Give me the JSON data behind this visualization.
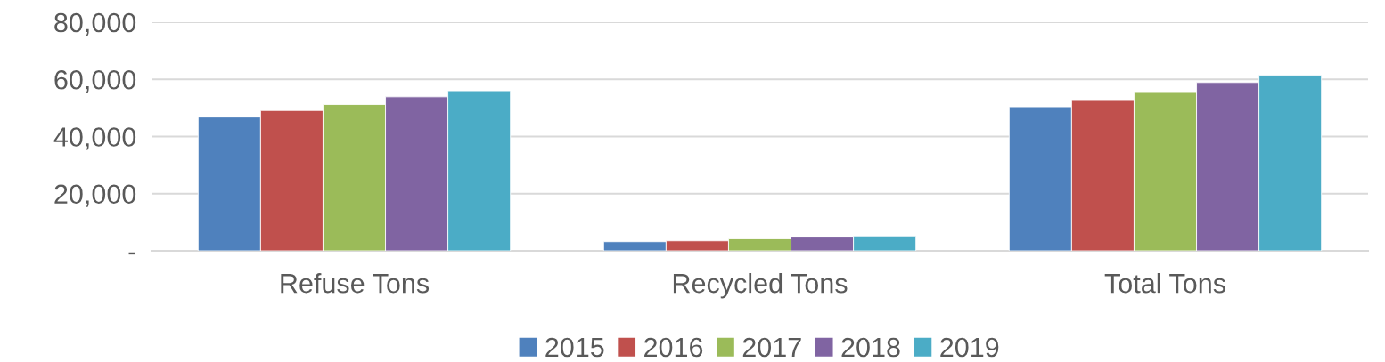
{
  "chart_data": {
    "type": "bar",
    "categories": [
      "Refuse Tons",
      "Recycled Tons",
      "Total Tons"
    ],
    "series": [
      {
        "name": "2015",
        "color": "#4f81bd",
        "values": [
          46800,
          3200,
          50400
        ]
      },
      {
        "name": "2016",
        "color": "#c0504d",
        "values": [
          49100,
          3500,
          52900
        ]
      },
      {
        "name": "2017",
        "color": "#9bbb59",
        "values": [
          51200,
          4200,
          55700
        ]
      },
      {
        "name": "2018",
        "color": "#8064a2",
        "values": [
          53900,
          4800,
          58900
        ]
      },
      {
        "name": "2019",
        "color": "#4bacc6",
        "values": [
          56000,
          5200,
          61500
        ]
      }
    ],
    "ylim": [
      0,
      80000
    ],
    "yticks": [
      {
        "value": 0,
        "label": "-"
      },
      {
        "value": 20000,
        "label": "20,000"
      },
      {
        "value": 40000,
        "label": "40,000"
      },
      {
        "value": 60000,
        "label": "60,000"
      },
      {
        "value": 80000,
        "label": "80,000"
      }
    ],
    "grid": "y",
    "legend": "bottom"
  }
}
